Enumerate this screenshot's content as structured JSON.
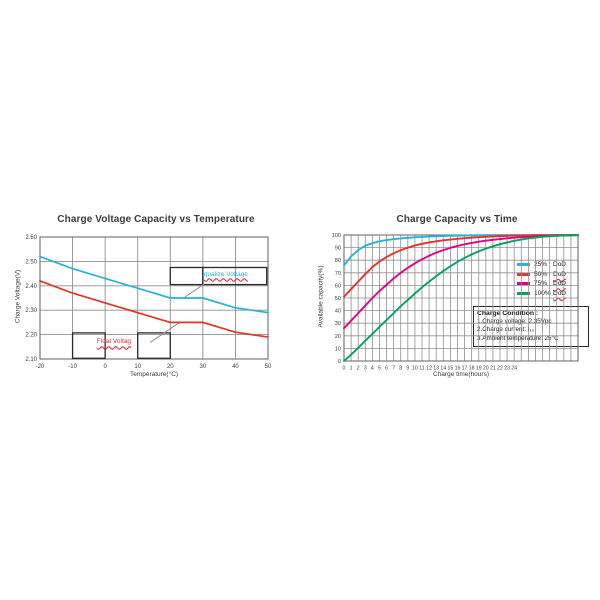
{
  "page": {
    "background": "#ffffff"
  },
  "colors": {
    "grid": "#8f8f8f",
    "plot_border": "#6e6e6e",
    "annotation_box": "#2a2a2a",
    "leader_line": "#909090",
    "title_text": "#3c3c3c",
    "tick_text": "#3c3c3c",
    "cyan": "#29b2d8",
    "red": "#e63229",
    "magenta": "#e4007f",
    "green": "#00a55a"
  },
  "chart_data": [
    {
      "id": "temperature-chart",
      "type": "line",
      "title": "Charge Voltage Capacity vs Temperature",
      "xlabel": "Temperature(°C)",
      "ylabel": "Charge Voltage(V)",
      "xlim": [
        -20,
        50
      ],
      "ylim": [
        2.1,
        2.6
      ],
      "xgrid_step": 10,
      "ygrid_step": 0.1,
      "grid": true,
      "legend_position": "in-plot-annotations",
      "xticks": [
        -20,
        -10,
        0,
        10,
        20,
        30,
        40,
        50
      ],
      "yticks": [
        2.1,
        2.2,
        2.3,
        2.4,
        2.5,
        2.6
      ],
      "ytick_labels": [
        "2.10",
        "2.20",
        "2.30",
        "2.40",
        "2.50",
        "2.60"
      ],
      "x": [
        -20,
        -10,
        0,
        10,
        20,
        30,
        40,
        50
      ],
      "series": [
        {
          "name": "qualize Voltage",
          "color": "#29b2d8",
          "values": [
            2.52,
            2.47,
            2.43,
            2.39,
            2.35,
            2.35,
            2.31,
            2.29
          ]
        },
        {
          "name": "Float Voltag",
          "color": "#e63229",
          "values": [
            2.42,
            2.37,
            2.33,
            2.29,
            2.25,
            2.25,
            2.21,
            2.19
          ]
        }
      ],
      "annotations": {
        "boxes": [
          {
            "x0": 20,
            "y0": 2.405,
            "x1": 30,
            "y1": 2.475
          },
          {
            "x0": 30,
            "y0": 2.405,
            "x1": 49.6,
            "y1": 2.475
          },
          {
            "x0": -10,
            "y0": 2.103,
            "x1": 0,
            "y1": 2.207
          },
          {
            "x0": 10,
            "y0": 2.103,
            "x1": 20,
            "y1": 2.207
          }
        ],
        "leaders": [
          {
            "x1": 24.3,
            "y1": 2.352,
            "x2": 30.4,
            "y2": 2.407
          },
          {
            "x1": 13.8,
            "y1": 2.168,
            "x2": 23.2,
            "y2": 2.253
          }
        ],
        "labels": [
          {
            "text": "qualize Voltage",
            "color": "#29b2d8",
            "x": 30.3,
            "y": 2.462
          },
          {
            "text": "Float Voltag",
            "color": "#e63229",
            "x": -2.6,
            "y": 2.185
          }
        ]
      }
    },
    {
      "id": "capacity-chart",
      "type": "line",
      "title": "Charge Capacity vs Time",
      "xlabel": "Charge time(hours)",
      "ylabel": "Available capacity(%)",
      "xlim": [
        0,
        33
      ],
      "ylim": [
        0,
        100
      ],
      "xgrid_step": 1,
      "ygrid_step": 10,
      "grid": true,
      "legend_position": "right-inside",
      "xticks": [
        0,
        1,
        2,
        3,
        4,
        5,
        6,
        7,
        8,
        9,
        10,
        11,
        12,
        13,
        14,
        15,
        16,
        17,
        18,
        19,
        20,
        21,
        22,
        23,
        24
      ],
      "yticks": [
        0,
        10,
        20,
        30,
        40,
        50,
        60,
        70,
        80,
        90,
        100
      ],
      "ytick_labels": [
        "0",
        "10",
        "20",
        "30",
        "40",
        "50",
        "60",
        "70",
        "80",
        "90",
        "100"
      ],
      "x": [
        0,
        1,
        2,
        3,
        4,
        5,
        6,
        7,
        8,
        9,
        10,
        11,
        12,
        13,
        14,
        15,
        16,
        17,
        18,
        19,
        20,
        21,
        22,
        23,
        24,
        25,
        26,
        27,
        28,
        29,
        30,
        31,
        32,
        33
      ],
      "series": [
        {
          "name": "25% DoD",
          "color": "#29b2d8",
          "values": [
            76,
            83,
            88,
            91.5,
            93.5,
            95,
            96,
            96.7,
            97.3,
            97.8,
            98.2,
            98.5,
            98.8,
            99,
            99.2,
            99.35,
            99.5,
            99.6,
            99.7,
            99.75,
            99.8,
            99.85,
            99.9,
            99.92,
            99.94,
            99.95,
            99.96,
            99.97,
            99.98,
            99.98,
            99.99,
            99.99,
            100,
            100
          ]
        },
        {
          "name": "50% DoD",
          "color": "#e63229",
          "values": [
            51,
            57,
            63,
            69,
            74.5,
            79,
            82.5,
            85.5,
            88,
            90,
            91.7,
            93,
            94.1,
            95,
            95.8,
            96.4,
            97,
            97.5,
            97.9,
            98.3,
            98.6,
            98.9,
            99.1,
            99.3,
            99.45,
            99.55,
            99.65,
            99.72,
            99.8,
            99.85,
            99.9,
            99.93,
            99.96,
            100
          ]
        },
        {
          "name": "75% DoD",
          "color": "#e4007f",
          "values": [
            26,
            32,
            38,
            44,
            50,
            55.5,
            60.5,
            65.5,
            70,
            74,
            77.5,
            80.7,
            83.5,
            86,
            88,
            89.8,
            91.3,
            92.6,
            93.7,
            94.7,
            95.5,
            96.2,
            96.8,
            97.4,
            97.9,
            98.3,
            98.6,
            98.9,
            99.15,
            99.35,
            99.5,
            99.65,
            99.8,
            99.9
          ]
        },
        {
          "name": "100%DoD",
          "color": "#00a55a",
          "values": [
            0,
            5,
            10.5,
            16,
            21.5,
            27,
            32.5,
            38,
            43.5,
            48.5,
            53.5,
            58.5,
            63,
            67.3,
            71.4,
            75.2,
            78.7,
            81.8,
            84.6,
            87,
            89.2,
            91,
            92.7,
            94.1,
            95.4,
            96.4,
            97.3,
            98,
            98.6,
            99,
            99.35,
            99.6,
            99.8,
            99.9
          ]
        }
      ],
      "legend": {
        "items": [
          {
            "pct": "25%",
            "dod": "DoD",
            "color": "#29b2d8",
            "squiggle": false
          },
          {
            "pct": "50%",
            "dod": "DoD",
            "color": "#e63229",
            "squiggle": true
          },
          {
            "pct": "75%",
            "dod": "DoD",
            "color": "#e4007f",
            "squiggle": true
          },
          {
            "pct": "100%",
            "dod": "DoD",
            "color": "#00a55a",
            "squiggle": true
          }
        ]
      },
      "note_box": {
        "title": "Charge Condition :",
        "lines": [
          "1.Charge voltage:  2.35Vpc",
          "2.Charge current:  I₁₀",
          "3.Ambient temperature:  25°C"
        ]
      }
    }
  ]
}
